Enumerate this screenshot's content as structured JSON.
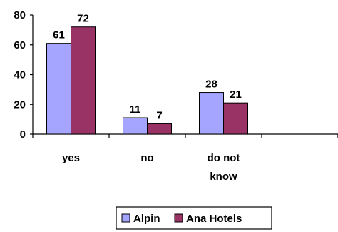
{
  "chart_data": {
    "type": "bar",
    "categories": [
      [
        "yes"
      ],
      [
        "no"
      ],
      [
        "do not",
        "know"
      ],
      [
        ""
      ]
    ],
    "series": [
      {
        "name": "Alpin",
        "values": [
          61,
          11,
          28,
          null
        ],
        "color": "#a5a5ff"
      },
      {
        "name": "Ana Hotels",
        "values": [
          72,
          7,
          21,
          null
        ],
        "color": "#993366"
      }
    ],
    "y_ticks": [
      "0",
      "20",
      "40",
      "60",
      "80"
    ],
    "ylim": [
      0,
      80
    ],
    "grid": false,
    "legend_position": "bottom-center",
    "data_labels": true
  }
}
